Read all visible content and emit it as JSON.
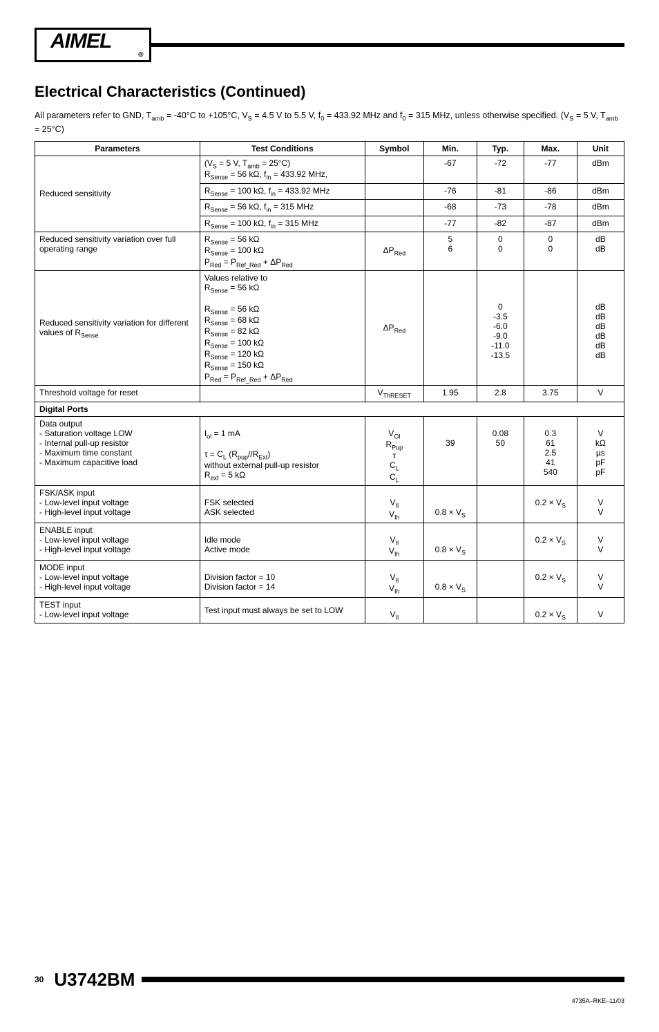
{
  "logo_text": "AIMEL",
  "title": "Electrical Characteristics (Continued)",
  "intro_line1": "All parameters refer to GND, T",
  "intro_line1_sub1": "amb",
  "intro_line1_cont1": " = -40°C to +105°C, V",
  "intro_line1_sub2": "S",
  "intro_line1_cont2": " = 4.5 V to 5.5 V, f",
  "intro_line1_sub3": "0",
  "intro_line1_cont3": " = 433.92 MHz and f",
  "intro_line1_sub4": "0",
  "intro_line1_cont4": " = 315 MHz, unless otherwise specified. (V",
  "intro_line1_sub5": "S",
  "intro_line1_cont5": " = 5 V, T",
  "intro_line1_sub6": "amb",
  "intro_line1_cont6": " = 25°C)",
  "headers": {
    "parameters": "Parameters",
    "test_conditions": "Test Conditions",
    "symbol": "Symbol",
    "min": "Min.",
    "typ": "Typ.",
    "max": "Max.",
    "unit": "Unit"
  },
  "rows": {
    "r1": {
      "param": "Reduced sensitivity",
      "c1_cond_html": "(V<sub>S</sub> = 5 V, T<sub>amb</sub> = 25°C)<br>R<sub>Sense</sub> = 56 kΩ, f<sub>in</sub> = 433.92 MHz,",
      "c1_min": "-67",
      "c1_typ": "-72",
      "c1_max": "-77",
      "c1_unit": "dBm",
      "c2_cond_html": "R<sub>Sense</sub> = 100 kΩ, f<sub>in</sub> = 433.92 MHz",
      "c2_min": "-76",
      "c2_typ": "-81",
      "c2_max": "-86",
      "c2_unit": "dBm",
      "c3_cond_html": "R<sub>Sense</sub> = 56 kΩ, f<sub>in</sub> = 315 MHz",
      "c3_min": "-68",
      "c3_typ": "-73",
      "c3_max": "-78",
      "c3_unit": "dBm",
      "c4_cond_html": "R<sub>Sense</sub> = 100 kΩ, f<sub>in</sub> = 315 MHz",
      "c4_min": "-77",
      "c4_typ": "-82",
      "c4_max": "-87",
      "c4_unit": "dBm"
    },
    "r2": {
      "param": "Reduced sensitivity variation over full operating range",
      "cond_html": "R<sub>Sense</sub> = 56 kΩ<br>R<sub>Sense</sub> = 100 kΩ<br>P<sub>Red</sub> = P<sub>Ref_Red</sub> + ΔP<sub>Red</sub>",
      "sym_html": "ΔP<sub>Red</sub>",
      "min": "5\n6",
      "typ": "0\n0",
      "max": "0\n0",
      "unit": "dB\ndB"
    },
    "r3": {
      "param_html": "Reduced sensitivity variation for different values of R<sub>Sense</sub>",
      "cond_html": "Values relative to<br>R<sub>Sense</sub> = 56 kΩ<br><br>R<sub>Sense</sub> = 56 kΩ<br>R<sub>Sense</sub> = 68 kΩ<br>R<sub>Sense</sub> = 82 kΩ<br>R<sub>Sense</sub> = 100 kΩ<br>R<sub>Sense</sub> = 120 kΩ<br>R<sub>Sense</sub> = 150 kΩ<br>P<sub>Red</sub> = P<sub>Ref_Red</sub> + ΔP<sub>Red</sub>",
      "sym_html": "ΔP<sub>Red</sub>",
      "typ_html": "<br><br><br>0<br>-3.5<br>-6.0<br>-9.0<br>-11.0<br>-13.5",
      "unit_html": "<br><br><br>dB<br>dB<br>dB<br>dB<br>dB<br>dB"
    },
    "r4": {
      "param": "Threshold voltage for reset",
      "sym_html": "V<sub>ThRESET</sub>",
      "min": "1.95",
      "typ": "2.8",
      "max": "3.75",
      "unit": "V"
    },
    "section_digital": "Digital Ports",
    "r5": {
      "param_html": "Data output<br>- Saturation voltage LOW<br>- Internal pull-up resistor<br>- Maximum time constant<br>- Maximum capacitive load",
      "cond_html": "<br>I<sub>ol</sub> = 1 mA<br><br>τ = C<sub>L</sub> (R<sub>pup</sub>//R<sub>Ext</sub>)<br>without external pull-up resistor<br>R<sub>ext</sub> = 5 kΩ",
      "sym_html": "<br>V<sub>Ol</sub><br>R<sub>Pup</sub><br>τ<br>C<sub>L</sub><br>C<sub>L</sub>",
      "min_html": "<br><br>39",
      "typ_html": "<br>0.08<br>50",
      "max_html": "<br>0.3<br>61<br>2.5<br>41<br>540",
      "unit_html": "<br>V<br>kΩ<br>µs<br>pF<br>pF"
    },
    "r6": {
      "param_html": "FSK/ASK input<br>- Low-level input voltage<br>- High-level input voltage",
      "cond_html": "<br>FSK selected<br>ASK selected",
      "sym_html": "<br>V<sub>Il</sub><br>V<sub>Ih</sub>",
      "min_html": "<br><br>0.8 × V<sub>S</sub>",
      "max_html": "<br>0.2 × V<sub>S</sub>",
      "unit_html": "<br>V<br>V"
    },
    "r7": {
      "param_html": "ENABLE input<br>- Low-level input voltage<br>- High-level input voltage",
      "cond_html": "<br>Idle mode<br>Active mode",
      "sym_html": "<br>V<sub>Il</sub><br>V<sub>Ih</sub>",
      "min_html": "<br><br>0.8 × V<sub>S</sub>",
      "max_html": "<br>0.2 × V<sub>S</sub>",
      "unit_html": "<br>V<br>V"
    },
    "r8": {
      "param_html": "MODE input<br>- Low-level input voltage<br>- High-level input voltage",
      "cond_html": "<br>Division factor = 10<br>Division factor = 14",
      "sym_html": "<br>V<sub>Il</sub><br>V<sub>Ih</sub>",
      "min_html": "<br><br>0.8 × V<sub>S</sub>",
      "max_html": "<br>0.2 × V<sub>S</sub>",
      "unit_html": "<br>V<br>V"
    },
    "r9": {
      "param_html": "TEST input<br>- Low-level input voltage",
      "cond_html": "Test input must always be set to LOW",
      "sym_html": "<br>V<sub>Il</sub>",
      "max_html": "<br>0.2 × V<sub>S</sub>",
      "unit_html": "<br>V"
    }
  },
  "footer": {
    "page": "30",
    "part": "U3742BM",
    "docid": "4735A–RKE–11/03"
  }
}
